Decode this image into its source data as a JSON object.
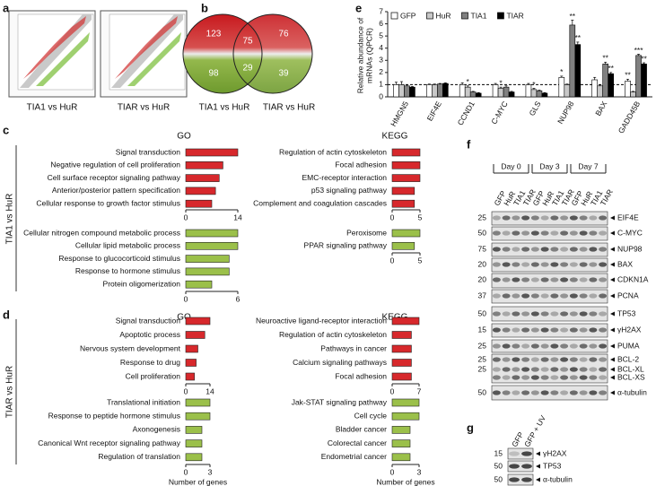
{
  "panel_labels": [
    "a",
    "b",
    "c",
    "d",
    "e",
    "f",
    "g"
  ],
  "panel_a": {
    "plots": [
      "TIA1 vs HuR",
      "TIAR vs HuR"
    ]
  },
  "venn": {
    "sets": [
      "TIA1 vs HuR",
      "TIAR vs HuR"
    ],
    "up": {
      "left": 123,
      "both": 75,
      "right": 76
    },
    "down": {
      "left": 98,
      "both": 29,
      "right": 39
    }
  },
  "panel_c": {
    "side_label": "TIA1 vs HuR",
    "headers": [
      "GO",
      "KEGG"
    ]
  },
  "panel_d": {
    "side_label": "TIAR vs HuR",
    "headers": [
      "GO",
      "KEGG"
    ]
  },
  "chart_data": [
    {
      "type": "bar",
      "orientation": "horizontal",
      "color": "#d7282c",
      "categories": [
        "Signal transduction",
        "Negative regulation of cell proliferation",
        "Cell surface receptor signaling pathway",
        "Anterior/posterior pattern specification",
        "Cellular response to growth factor stimulus"
      ],
      "values": [
        14,
        10,
        9,
        8,
        7
      ],
      "xlim": [
        0,
        14
      ],
      "xticks": [
        0,
        14
      ]
    },
    {
      "type": "bar",
      "orientation": "horizontal",
      "color": "#9bc04a",
      "categories": [
        "Cellular nitrogen compound metabolic process",
        "Cellular lipid metabolic process",
        "Response to glucocorticoid stimulus",
        "Response to hormone stimulus",
        "Protein oligomerization"
      ],
      "values": [
        6,
        6,
        5,
        5,
        3
      ],
      "xlim": [
        0,
        6
      ],
      "xticks": [
        0,
        6
      ]
    },
    {
      "type": "bar",
      "orientation": "horizontal",
      "color": "#d7282c",
      "categories": [
        "Regulation of actin cytoskeleton",
        "Focal adhesion",
        "EMC-receptor interaction",
        "p53 signaling pathway",
        "Complement and coagulation cascades"
      ],
      "values": [
        5,
        5,
        5,
        4,
        4
      ],
      "xlim": [
        0,
        5
      ],
      "xticks": [
        0,
        5
      ]
    },
    {
      "type": "bar",
      "orientation": "horizontal",
      "color": "#9bc04a",
      "categories": [
        "Peroxisome",
        "PPAR signaling pathway"
      ],
      "values": [
        5,
        4
      ],
      "xlim": [
        0,
        5
      ],
      "xticks": [
        0,
        5
      ]
    },
    {
      "type": "bar",
      "orientation": "horizontal",
      "color": "#d7282c",
      "categories": [
        "Signal transduction",
        "Apoptotic process",
        "Nervous system development",
        "Response to drug",
        "Cell proliferation"
      ],
      "values": [
        14,
        11,
        7,
        6,
        5
      ],
      "xlim": [
        0,
        14
      ],
      "xticks": [
        0,
        14
      ]
    },
    {
      "type": "bar",
      "orientation": "horizontal",
      "color": "#9bc04a",
      "categories": [
        "Translational initiation",
        "Response to peptide hormone stimulus",
        "Axonogenesis",
        "Canonical Wnt receptor signaling pathway",
        "Regulation of translation"
      ],
      "values": [
        3,
        3,
        2,
        2,
        2
      ],
      "xlim": [
        0,
        3
      ],
      "xticks": [
        0,
        3
      ],
      "xlabel": "Number of genes"
    },
    {
      "type": "bar",
      "orientation": "horizontal",
      "color": "#d7282c",
      "categories": [
        "Neuroactive ligand-receptor interaction",
        "Regulation of actin cytoskeleton",
        "Pathways in cancer",
        "Calcium signaling pathways",
        "Focal adhesion"
      ],
      "values": [
        7,
        5,
        5,
        5,
        5
      ],
      "xlim": [
        0,
        7
      ],
      "xticks": [
        0,
        7
      ]
    },
    {
      "type": "bar",
      "orientation": "horizontal",
      "color": "#9bc04a",
      "categories": [
        "Jak-STAT signaling pathway",
        "Cell cycle",
        "Bladder cancer",
        "Colorectal cancer",
        "Endometrial cancer"
      ],
      "values": [
        3,
        3,
        2,
        2,
        2
      ],
      "xlim": [
        0,
        3
      ],
      "xticks": [
        0,
        3
      ],
      "xlabel": "Number of genes"
    },
    {
      "type": "groupedbar",
      "categories": [
        "HMGN5",
        "EIF4E",
        "CCND1",
        "C-MYC",
        "GLS",
        "NUP98",
        "BAX",
        "GADD45B"
      ],
      "series": [
        {
          "name": "GFP",
          "color": "#ffffff",
          "values": [
            1,
            1,
            1,
            1,
            1,
            1.6,
            1.4,
            1.3
          ],
          "errors": [
            0.2,
            0.05,
            0.15,
            0.1,
            0.1,
            0.1,
            0.2,
            0.15
          ],
          "significance": [
            null,
            null,
            null,
            null,
            null,
            "*",
            null,
            "**"
          ]
        },
        {
          "name": "HuR",
          "color": "#c8c8c8",
          "values": [
            1,
            1,
            0.8,
            0.7,
            0.6,
            1,
            0.9,
            0.4
          ],
          "errors": [
            0.25,
            0.05,
            0.1,
            0.1,
            0.1,
            0.05,
            0.1,
            0.05
          ],
          "significance": [
            null,
            null,
            "*",
            "*",
            "*",
            null,
            null,
            null
          ]
        },
        {
          "name": "TIA1",
          "color": "#808080",
          "values": [
            0.9,
            1.05,
            0.4,
            0.8,
            0.5,
            5.9,
            2.7,
            3.4
          ],
          "errors": [
            0.1,
            0.05,
            0.05,
            0.1,
            0.05,
            0.4,
            0.15,
            0.1
          ],
          "significance": [
            null,
            null,
            null,
            null,
            null,
            "**",
            "**",
            "***"
          ]
        },
        {
          "name": "TIAR",
          "color": "#000000",
          "values": [
            0.8,
            1.1,
            0.3,
            0.4,
            0.3,
            4.3,
            1.9,
            2.7
          ],
          "errors": [
            0.05,
            0.05,
            0.05,
            0.05,
            0.05,
            0.2,
            0.1,
            0.1
          ],
          "significance": [
            null,
            null,
            null,
            null,
            null,
            "**",
            "**",
            "**"
          ]
        }
      ],
      "ylim": [
        0,
        7
      ],
      "yticks": [
        0,
        1,
        2,
        3,
        4,
        5,
        6,
        7
      ],
      "reference_line": 1,
      "ylabel": [
        "Relative abundance of",
        "mRNAs (QPCR)"
      ]
    }
  ],
  "blot_f": {
    "groups": [
      "Day 0",
      "Day 3",
      "Day 7"
    ],
    "lanes": [
      "GFP",
      "HuR",
      "TIA1",
      "TIAR",
      "GFP",
      "HuR",
      "TIA1",
      "TIAR",
      "GFP",
      "HuR",
      "TIA1",
      "TIAR"
    ],
    "rows": [
      {
        "marker": 25,
        "protein": "EIF4E"
      },
      {
        "marker": 50,
        "protein": "C-MYC"
      },
      {
        "marker": 75,
        "protein": "NUP98"
      },
      {
        "marker": 20,
        "protein": "BAX"
      },
      {
        "marker": 20,
        "protein": "CDKN1A"
      },
      {
        "marker": 37,
        "protein": "PCNA"
      },
      {
        "marker": 50,
        "protein": "TP53"
      },
      {
        "marker": 15,
        "protein": "γH2AX"
      },
      {
        "marker": 25,
        "protein": "PUMA"
      },
      {
        "marker": 25,
        "protein": "BCL-2"
      },
      {
        "marker": 25,
        "protein": "BCL-XL"
      },
      {
        "marker": null,
        "protein": "BCL-XS"
      },
      {
        "marker": 50,
        "protein": "α-tubulin"
      }
    ]
  },
  "blot_g": {
    "lanes": [
      "GFP",
      "GFP + UV"
    ],
    "rows": [
      {
        "marker": 15,
        "protein": "γH2AX"
      },
      {
        "marker": 50,
        "protein": "TP53"
      },
      {
        "marker": 50,
        "protein": "α-tubulin"
      }
    ]
  }
}
